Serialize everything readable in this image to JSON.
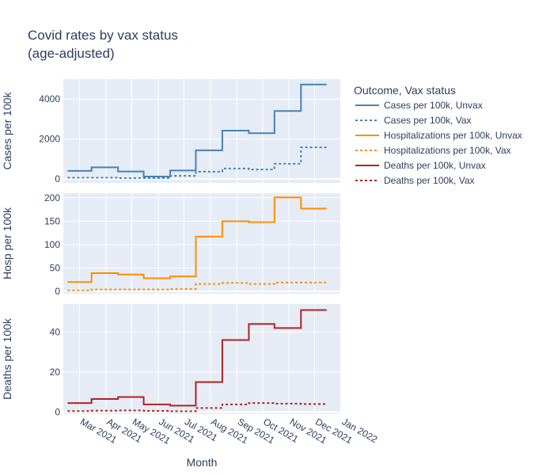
{
  "chart_data": {
    "type": "line",
    "title_lines": [
      "Covid rates by vax status",
      "(age-adjusted)"
    ],
    "xlabel": "Month",
    "legend_title": "Outcome, Vax status",
    "legend_position": "right",
    "grid": true,
    "line_shape": "step",
    "x_ticks": [
      "Mar 2021",
      "Apr 2021",
      "May 2021",
      "Jun 2021",
      "Jul 2021",
      "Aug 2021",
      "Sep 2021",
      "Oct 2021",
      "Nov 2021",
      "Dec 2021",
      "Jan 2022"
    ],
    "x": [
      "2021-02-15",
      "2021-03-15",
      "2021-04-15",
      "2021-05-15",
      "2021-06-15",
      "2021-07-15",
      "2021-08-15",
      "2021-09-15",
      "2021-10-15",
      "2021-11-15",
      "2021-12-15"
    ],
    "xlim": [
      "2021-02-10",
      "2021-12-31"
    ],
    "panels": [
      {
        "ylabel": "Cases per 100k",
        "ylim": [
          -200,
          5000
        ],
        "yticks": [
          0,
          2000,
          4000
        ],
        "series": [
          {
            "name": "Cases per 100k, Unvax",
            "color": "#4682b4",
            "dash": "solid",
            "values": [
              400,
              580,
              370,
              120,
              420,
              1430,
              2420,
              2290,
              3400,
              4730,
              4730
            ]
          },
          {
            "name": "Cases per 100k, Vax",
            "color": "#4682b4",
            "dash": "dot",
            "values": [
              60,
              60,
              40,
              40,
              150,
              360,
              520,
              470,
              760,
              1580,
              1580
            ]
          }
        ]
      },
      {
        "ylabel": "Hosp per 100k",
        "ylim": [
          -5,
          210
        ],
        "yticks": [
          0,
          50,
          100,
          150,
          200
        ],
        "series": [
          {
            "name": "Hospitalizations per 100k, Unvax",
            "color": "#ff8c00",
            "dash": "solid",
            "values": [
              20,
              39,
              36,
              28,
              32,
              117,
              150,
              148,
              201,
              177,
              177
            ]
          },
          {
            "name": "Hospitalizations per 100k, Vax",
            "color": "#ff8c00",
            "dash": "dot",
            "values": [
              2,
              4,
              4,
              4,
              5,
              16,
              18,
              16,
              19,
              19,
              19
            ]
          }
        ]
      },
      {
        "ylabel": "Deaths per 100k",
        "ylim": [
          -1,
          54
        ],
        "yticks": [
          0,
          20,
          40
        ],
        "series": [
          {
            "name": "Deaths per 100k, Unvax",
            "color": "#b22222",
            "dash": "solid",
            "values": [
              4.5,
              6.5,
              7.5,
              3.8,
              3.2,
              15,
              36,
              44,
              42,
              51,
              51
            ]
          },
          {
            "name": "Deaths per 100k, Vax",
            "color": "#b22222",
            "dash": "dot",
            "values": [
              0.5,
              0.7,
              0.8,
              0.6,
              0.4,
              2,
              3.8,
              4.5,
              4.2,
              4,
              4
            ]
          }
        ]
      }
    ]
  }
}
